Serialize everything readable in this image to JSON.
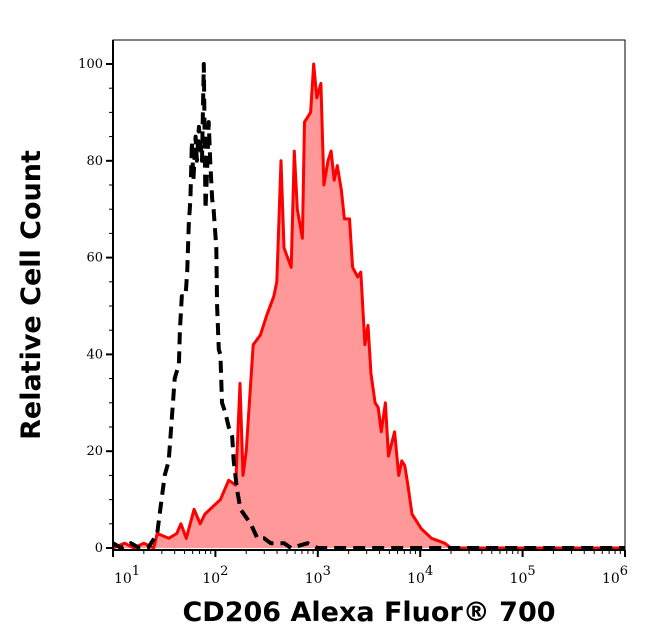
{
  "chart_data": {
    "type": "area",
    "title": "",
    "xlabel": "CD206 Alexa Fluor® 700",
    "ylabel": "Relative Cell Count",
    "x_scale": "log",
    "xlim": [
      10,
      1000000
    ],
    "ylim": [
      0,
      105
    ],
    "x_ticks": [
      {
        "value": 10,
        "base": "10",
        "exp": "1"
      },
      {
        "value": 100,
        "base": "10",
        "exp": "2"
      },
      {
        "value": 1000,
        "base": "10",
        "exp": "3"
      },
      {
        "value": 10000,
        "base": "10",
        "exp": "4"
      },
      {
        "value": 100000,
        "base": "10",
        "exp": "5"
      },
      {
        "value": 1000000,
        "base": "10",
        "exp": "6"
      }
    ],
    "y_ticks": [
      {
        "value": 0,
        "label": "0"
      },
      {
        "value": 20,
        "label": "20"
      },
      {
        "value": 40,
        "label": "40"
      },
      {
        "value": 60,
        "label": "60"
      },
      {
        "value": 80,
        "label": "80"
      },
      {
        "value": 100,
        "label": "100"
      }
    ],
    "grid": false,
    "series": [
      {
        "style": "filled solid",
        "line_color": "#ff0000",
        "fill_color": "#ff9999",
        "points": [
          [
            10,
            0
          ],
          [
            13,
            1
          ],
          [
            16,
            0
          ],
          [
            20,
            1
          ],
          [
            25,
            0
          ],
          [
            27,
            3
          ],
          [
            35,
            2
          ],
          [
            42,
            3
          ],
          [
            46,
            5
          ],
          [
            52,
            2
          ],
          [
            62,
            8
          ],
          [
            71,
            5
          ],
          [
            79,
            7
          ],
          [
            112,
            10
          ],
          [
            135,
            14
          ],
          [
            158,
            13
          ],
          [
            174,
            34
          ],
          [
            186,
            15
          ],
          [
            200,
            20
          ],
          [
            234,
            42
          ],
          [
            275,
            44
          ],
          [
            316,
            48
          ],
          [
            372,
            52
          ],
          [
            398,
            55
          ],
          [
            437,
            80
          ],
          [
            468,
            62
          ],
          [
            550,
            58
          ],
          [
            589,
            82
          ],
          [
            631,
            70
          ],
          [
            708,
            64
          ],
          [
            741,
            88
          ],
          [
            851,
            90
          ],
          [
            912,
            100
          ],
          [
            977,
            93
          ],
          [
            1072,
            96
          ],
          [
            1148,
            75
          ],
          [
            1259,
            80
          ],
          [
            1349,
            82
          ],
          [
            1445,
            76
          ],
          [
            1549,
            79
          ],
          [
            1698,
            74
          ],
          [
            1820,
            68
          ],
          [
            2042,
            68
          ],
          [
            2188,
            58
          ],
          [
            2455,
            56
          ],
          [
            2630,
            57
          ],
          [
            2884,
            42
          ],
          [
            3090,
            46
          ],
          [
            3311,
            36
          ],
          [
            3631,
            30
          ],
          [
            3890,
            29
          ],
          [
            4169,
            24
          ],
          [
            4571,
            30
          ],
          [
            4898,
            19
          ],
          [
            5623,
            24
          ],
          [
            6166,
            15
          ],
          [
            6607,
            18
          ],
          [
            7079,
            17
          ],
          [
            7586,
            13
          ],
          [
            8318,
            7
          ],
          [
            9550,
            5
          ],
          [
            10233,
            4
          ],
          [
            12882,
            2
          ],
          [
            17378,
            1
          ],
          [
            19953,
            0
          ],
          [
            100000,
            0
          ],
          [
            1000000,
            0
          ]
        ]
      },
      {
        "style": "dashed",
        "line_color": "#000000",
        "points": [
          [
            10,
            1
          ],
          [
            12,
            0
          ],
          [
            15,
            1
          ],
          [
            18,
            0
          ],
          [
            22,
            0
          ],
          [
            27,
            3
          ],
          [
            29,
            8
          ],
          [
            32,
            15
          ],
          [
            35,
            18
          ],
          [
            37,
            25
          ],
          [
            40,
            35
          ],
          [
            44,
            38
          ],
          [
            45,
            45
          ],
          [
            47,
            52
          ],
          [
            51,
            52
          ],
          [
            53,
            57
          ],
          [
            55,
            67
          ],
          [
            57,
            72
          ],
          [
            59,
            84
          ],
          [
            61,
            76
          ],
          [
            64,
            85
          ],
          [
            66,
            80
          ],
          [
            69,
            87
          ],
          [
            74,
            80
          ],
          [
            77,
            100
          ],
          [
            80,
            70
          ],
          [
            83,
            78
          ],
          [
            86,
            88
          ],
          [
            89,
            80
          ],
          [
            93,
            72
          ],
          [
            96,
            70
          ],
          [
            102,
            62
          ],
          [
            104,
            50
          ],
          [
            108,
            41
          ],
          [
            112,
            40
          ],
          [
            116,
            30
          ],
          [
            125,
            28
          ],
          [
            135,
            25
          ],
          [
            146,
            23
          ],
          [
            151,
            18
          ],
          [
            163,
            12
          ],
          [
            176,
            8
          ],
          [
            190,
            7
          ],
          [
            221,
            5
          ],
          [
            257,
            2
          ],
          [
            299,
            2
          ],
          [
            347,
            1
          ],
          [
            470,
            1
          ],
          [
            547,
            0
          ],
          [
            797,
            1
          ],
          [
            1000,
            0
          ],
          [
            100000,
            0
          ],
          [
            1000000,
            0
          ]
        ]
      }
    ]
  }
}
